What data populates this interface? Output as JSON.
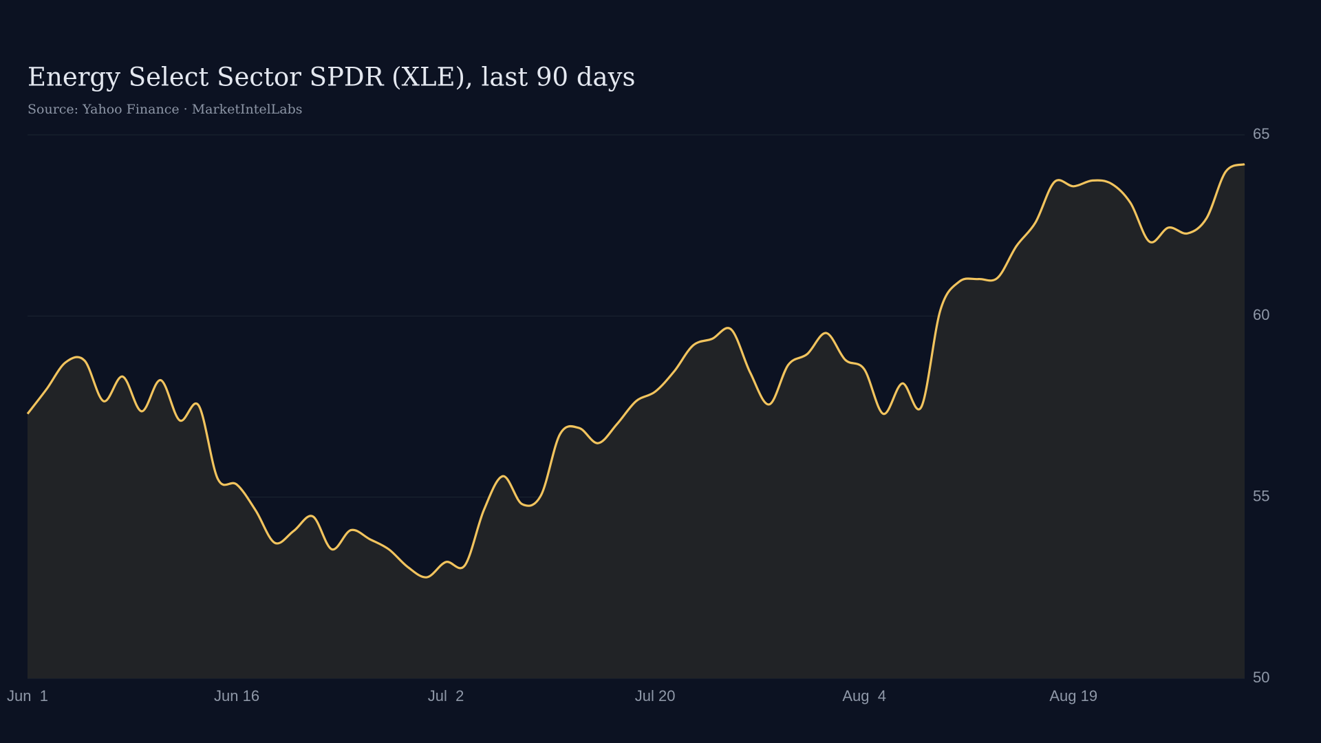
{
  "chart_data": {
    "type": "area",
    "title": "Energy Select Sector SPDR (XLE), last 90 days",
    "subtitle": "Source: Yahoo Finance · MarketIntelLabs",
    "categories": [
      "Jun  1",
      null,
      null,
      null,
      null,
      null,
      null,
      null,
      null,
      null,
      null,
      "Jun 16",
      null,
      null,
      null,
      null,
      null,
      null,
      null,
      null,
      null,
      null,
      "Jul  2",
      null,
      null,
      null,
      null,
      null,
      null,
      null,
      null,
      null,
      null,
      "Jul 20",
      null,
      null,
      null,
      null,
      null,
      null,
      null,
      null,
      null,
      null,
      "Aug  4",
      null,
      null,
      null,
      null,
      null,
      null,
      null,
      null,
      null,
      null,
      "Aug 19",
      null,
      null,
      null,
      null,
      null,
      null,
      null,
      null,
      null
    ],
    "values": [
      57.3,
      57.98,
      58.72,
      58.77,
      57.65,
      58.33,
      57.37,
      58.23,
      57.12,
      57.53,
      55.51,
      55.35,
      54.63,
      53.74,
      54.07,
      54.47,
      53.56,
      54.09,
      53.84,
      53.56,
      53.07,
      52.79,
      53.21,
      53.12,
      54.65,
      55.58,
      54.81,
      55.05,
      56.74,
      56.91,
      56.49,
      57.02,
      57.65,
      57.91,
      58.47,
      59.19,
      59.37,
      59.63,
      58.44,
      57.56,
      58.65,
      58.95,
      59.53,
      58.79,
      58.53,
      57.3,
      58.14,
      57.49,
      60.16,
      60.95,
      61.02,
      61.05,
      61.93,
      62.58,
      63.7,
      63.58,
      63.74,
      63.65,
      63.12,
      62.05,
      62.44,
      62.28,
      62.7,
      63.98,
      64.19
    ],
    "color": "#f2c45e",
    "fill": "#212326",
    "ylim": [
      50,
      65
    ],
    "yticks": [
      50,
      55,
      60,
      65
    ],
    "grid": true
  }
}
